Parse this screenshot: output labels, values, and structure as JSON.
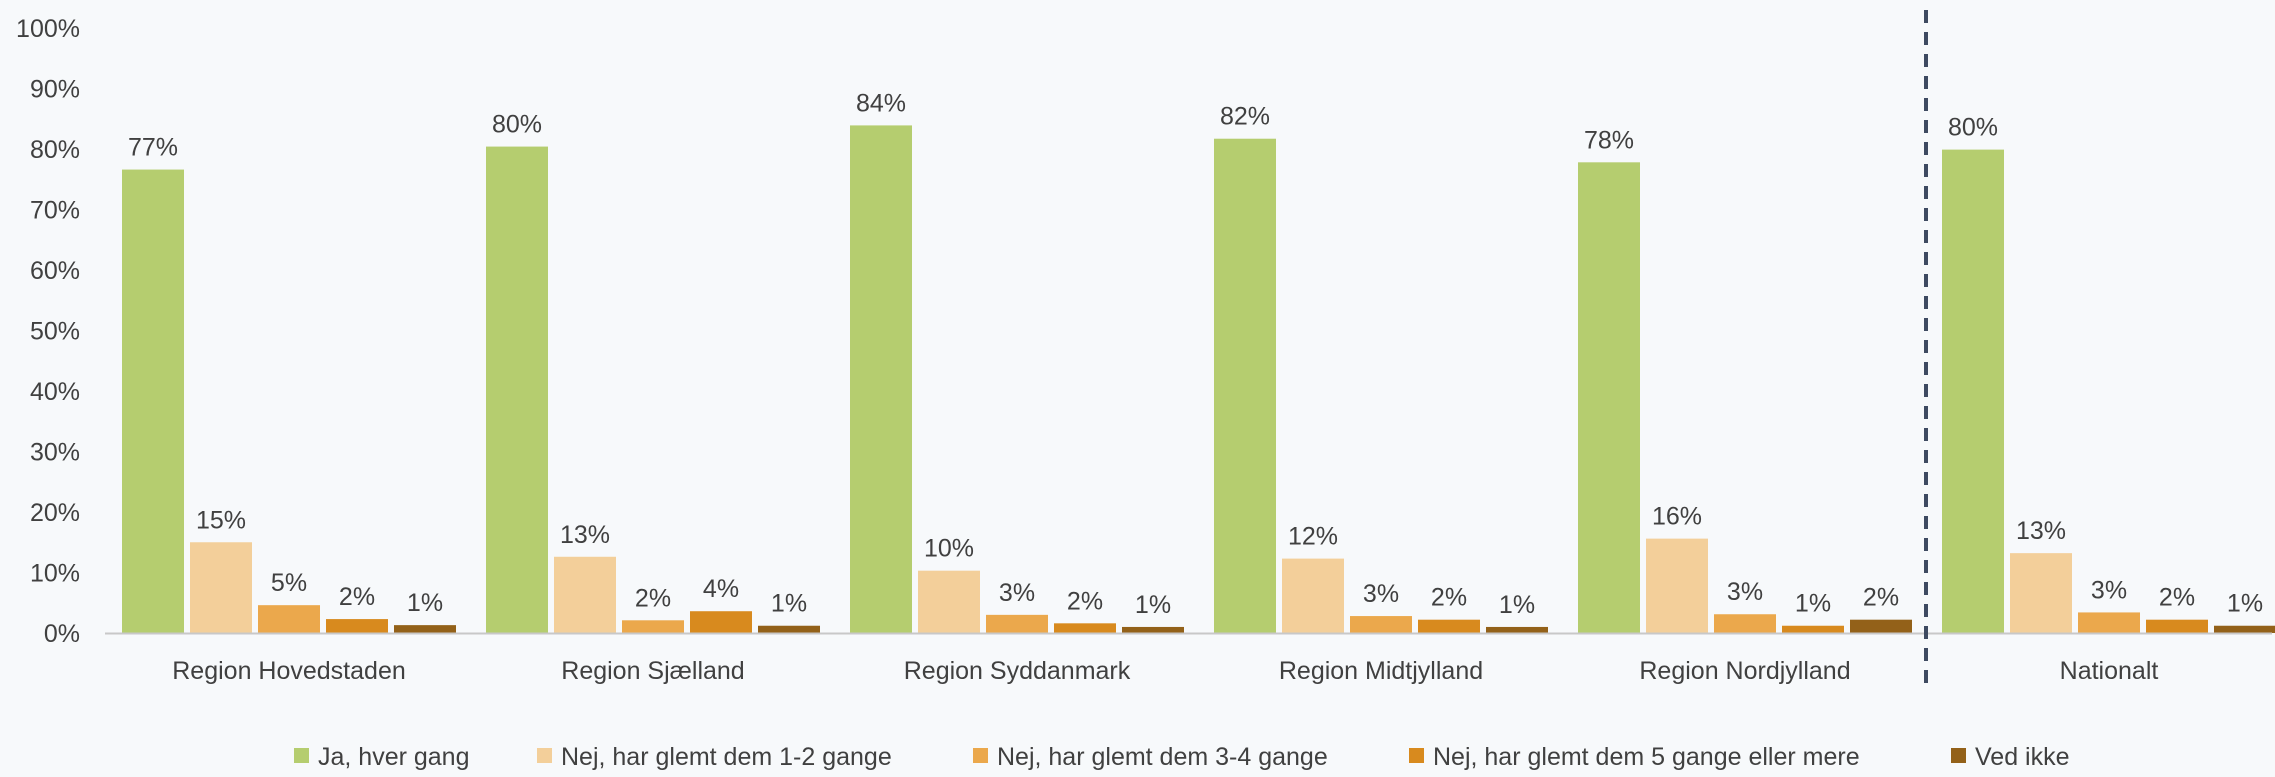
{
  "chart_data": {
    "type": "bar",
    "title": "",
    "xlabel": "",
    "ylabel": "",
    "ylim": [
      0,
      100
    ],
    "y_unit": "%",
    "y_ticks": [
      "0%",
      "10%",
      "20%",
      "30%",
      "40%",
      "50%",
      "60%",
      "70%",
      "80%",
      "90%",
      "100%"
    ],
    "grid": false,
    "legend_position": "bottom",
    "categories": [
      "Region Hovedstaden",
      "Region Sjælland",
      "Region Syddanmark",
      "Region Midtjylland",
      "Region Nordjylland",
      "Nationalt"
    ],
    "separator_before_category": "Nationalt",
    "series": [
      {
        "name": "Ja, hver gang",
        "color": "#b5cd6f",
        "values": [
          76.6,
          80.4,
          83.9,
          81.7,
          77.8,
          79.9
        ],
        "labels": [
          "77%",
          "80%",
          "84%",
          "82%",
          "78%",
          "80%"
        ]
      },
      {
        "name": "Nej, har glemt dem 1-2 gange",
        "color": "#f3cf9a",
        "values": [
          15.0,
          12.6,
          10.3,
          12.3,
          15.6,
          13.2
        ],
        "labels": [
          "15%",
          "13%",
          "10%",
          "12%",
          "16%",
          "13%"
        ]
      },
      {
        "name": "Nej, har glemt dem 3-4 gange",
        "color": "#eba84c",
        "values": [
          4.6,
          2.1,
          3.0,
          2.8,
          3.1,
          3.4
        ],
        "labels": [
          "5%",
          "2%",
          "3%",
          "3%",
          "3%",
          "3%"
        ]
      },
      {
        "name": "Nej, har glemt dem 5 gange eller mere",
        "color": "#d88a1e",
        "values": [
          2.3,
          3.6,
          1.6,
          2.2,
          1.2,
          2.2
        ],
        "labels": [
          "2%",
          "4%",
          "2%",
          "2%",
          "1%",
          "2%"
        ]
      },
      {
        "name": "Ved ikke",
        "color": "#936119",
        "values": [
          1.3,
          1.2,
          1.0,
          1.0,
          2.2,
          1.2
        ],
        "labels": [
          "1%",
          "1%",
          "1%",
          "1%",
          "2%",
          "1%"
        ]
      }
    ]
  }
}
